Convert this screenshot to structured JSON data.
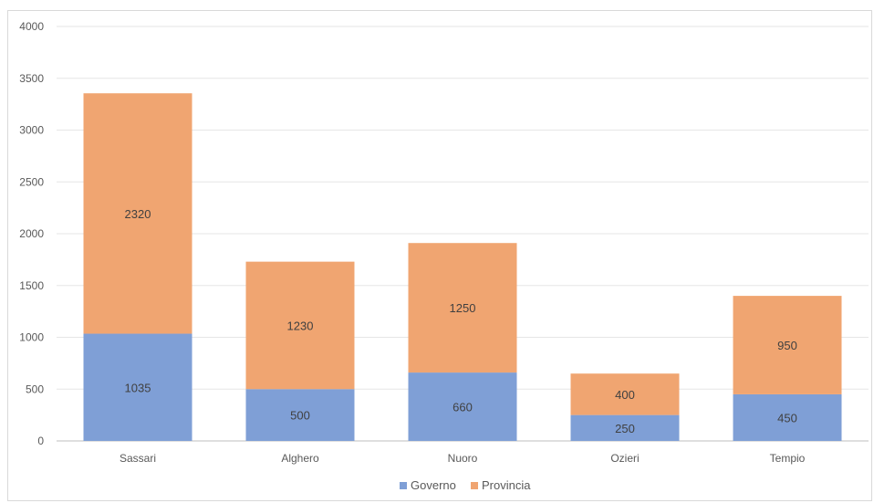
{
  "chart_data": {
    "type": "bar",
    "stacked": true,
    "categories": [
      "Sassari",
      "Alghero",
      "Nuoro",
      "Ozieri",
      "Tempio"
    ],
    "series": [
      {
        "name": "Governo",
        "values": [
          1035,
          500,
          660,
          250,
          450
        ],
        "color": "#7f9fd6"
      },
      {
        "name": "Provincia",
        "values": [
          2320,
          1230,
          1250,
          400,
          950
        ],
        "color": "#f0a571"
      }
    ],
    "ylim": [
      0,
      4000
    ],
    "yticks": [
      0,
      500,
      1000,
      1500,
      2000,
      2500,
      3000,
      3500,
      4000
    ],
    "grid": true,
    "legend_position": "bottom",
    "title": "",
    "xlabel": "",
    "ylabel": ""
  }
}
